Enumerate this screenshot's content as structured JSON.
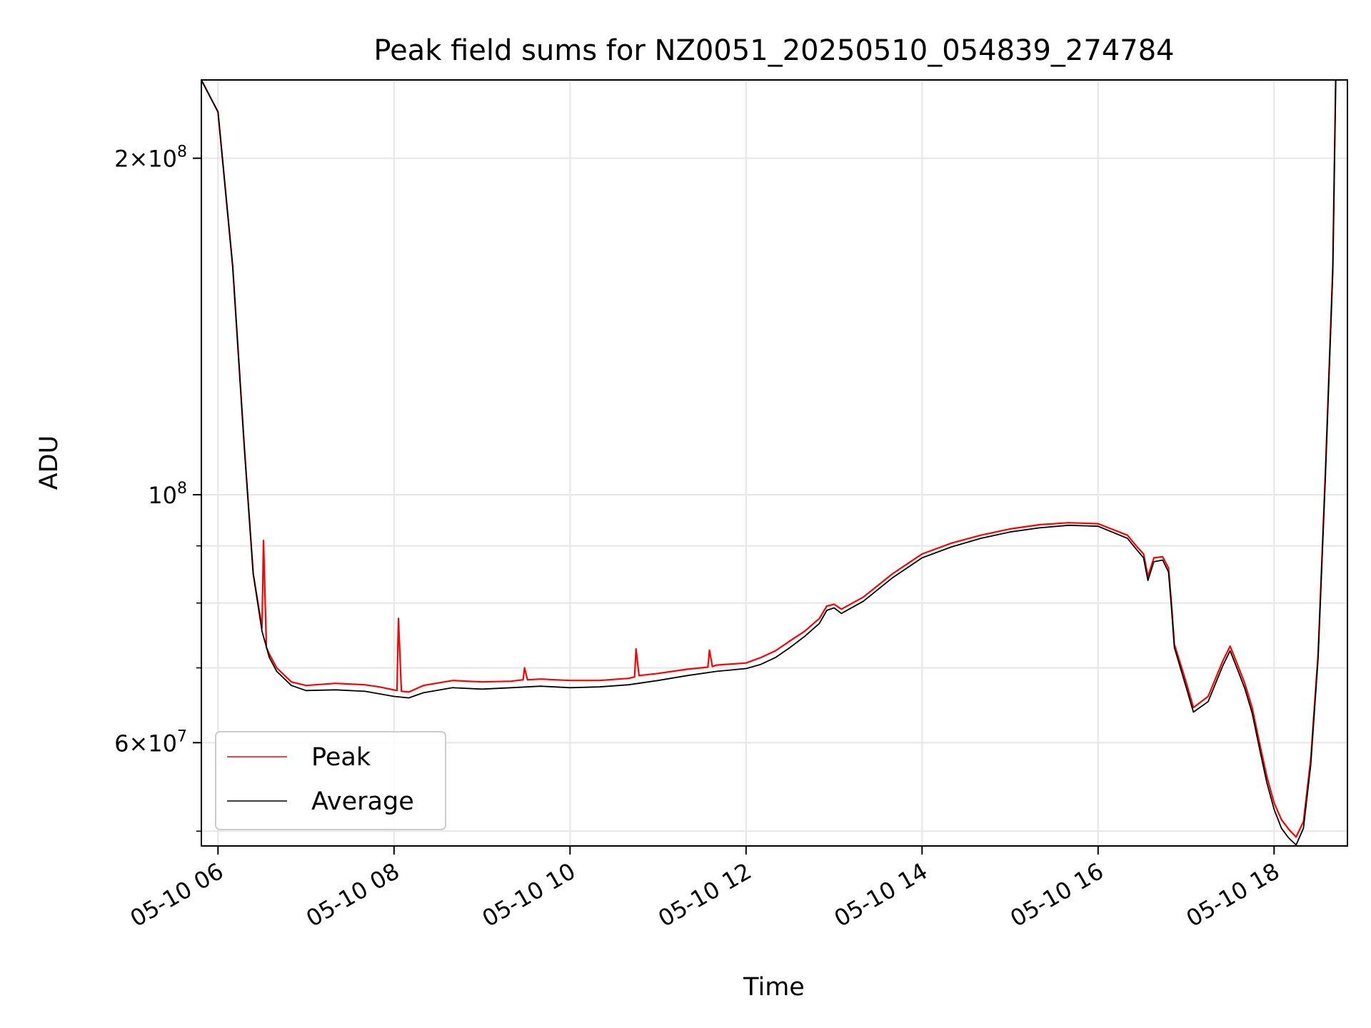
{
  "chart_data": {
    "type": "line",
    "title": "Peak field sums for NZ0051_20250510_054839_274784",
    "xlabel": "Time",
    "ylabel": "ADU",
    "x_scale": "time",
    "y_scale": "log",
    "xlim": [
      "2025-05-10T05:48:39",
      "2025-05-10T18:50:00"
    ],
    "ylim": [
      48500000,
      235000000
    ],
    "grid": true,
    "legend_position": "lower-left",
    "x_ticks": [
      {
        "t": "2025-05-10T06:00:00",
        "label": "05-10 06"
      },
      {
        "t": "2025-05-10T08:00:00",
        "label": "05-10 08"
      },
      {
        "t": "2025-05-10T10:00:00",
        "label": "05-10 10"
      },
      {
        "t": "2025-05-10T12:00:00",
        "label": "05-10 12"
      },
      {
        "t": "2025-05-10T14:00:00",
        "label": "05-10 14"
      },
      {
        "t": "2025-05-10T16:00:00",
        "label": "05-10 16"
      },
      {
        "t": "2025-05-10T18:00:00",
        "label": "05-10 18"
      }
    ],
    "y_ticks_major": [
      {
        "v": 60000000,
        "base": "6",
        "exp": "7"
      },
      {
        "v": 100000000,
        "base": "",
        "exp": "8"
      },
      {
        "v": 200000000,
        "base": "2",
        "exp": "8"
      }
    ],
    "y_ticks_minor": [
      50000000,
      70000000,
      80000000,
      90000000
    ],
    "series": [
      {
        "name": "Peak",
        "color": "#ff0000",
        "x": [
          "2025-05-10T05:48:39",
          "2025-05-10T06:00:00",
          "2025-05-10T06:10:00",
          "2025-05-10T06:18:00",
          "2025-05-10T06:24:00",
          "2025-05-10T06:30:00",
          "2025-05-10T06:31:00",
          "2025-05-10T06:33:00",
          "2025-05-10T06:35:00",
          "2025-05-10T06:40:00",
          "2025-05-10T06:50:00",
          "2025-05-10T07:00:00",
          "2025-05-10T07:20:00",
          "2025-05-10T07:40:00",
          "2025-05-10T07:50:00",
          "2025-05-10T08:02:00",
          "2025-05-10T08:03:00",
          "2025-05-10T08:05:00",
          "2025-05-10T08:10:00",
          "2025-05-10T08:20:00",
          "2025-05-10T08:40:00",
          "2025-05-10T09:00:00",
          "2025-05-10T09:20:00",
          "2025-05-10T09:28:00",
          "2025-05-10T09:29:00",
          "2025-05-10T09:31:00",
          "2025-05-10T09:40:00",
          "2025-05-10T10:00:00",
          "2025-05-10T10:20:00",
          "2025-05-10T10:40:00",
          "2025-05-10T10:44:00",
          "2025-05-10T10:45:00",
          "2025-05-10T10:47:00",
          "2025-05-10T11:00:00",
          "2025-05-10T11:20:00",
          "2025-05-10T11:34:00",
          "2025-05-10T11:35:00",
          "2025-05-10T11:37:00",
          "2025-05-10T11:40:00",
          "2025-05-10T12:00:00",
          "2025-05-10T12:10:00",
          "2025-05-10T12:20:00",
          "2025-05-10T12:30:00",
          "2025-05-10T12:40:00",
          "2025-05-10T12:50:00",
          "2025-05-10T12:55:00",
          "2025-05-10T13:00:00",
          "2025-05-10T13:05:00",
          "2025-05-10T13:20:00",
          "2025-05-10T13:40:00",
          "2025-05-10T14:00:00",
          "2025-05-10T14:20:00",
          "2025-05-10T14:40:00",
          "2025-05-10T15:00:00",
          "2025-05-10T15:20:00",
          "2025-05-10T15:40:00",
          "2025-05-10T16:00:00",
          "2025-05-10T16:20:00",
          "2025-05-10T16:26:00",
          "2025-05-10T16:31:00",
          "2025-05-10T16:34:00",
          "2025-05-10T16:38:00",
          "2025-05-10T16:44:00",
          "2025-05-10T16:48:00",
          "2025-05-10T16:50:00",
          "2025-05-10T16:52:00",
          "2025-05-10T17:00:00",
          "2025-05-10T17:05:00",
          "2025-05-10T17:15:00",
          "2025-05-10T17:25:00",
          "2025-05-10T17:30:00",
          "2025-05-10T17:35:00",
          "2025-05-10T17:40:00",
          "2025-05-10T17:45:00",
          "2025-05-10T17:50:00",
          "2025-05-10T17:55:00",
          "2025-05-10T18:00:00",
          "2025-05-10T18:05:00",
          "2025-05-10T18:10:00",
          "2025-05-10T18:15:00",
          "2025-05-10T18:20:00",
          "2025-05-10T18:25:00",
          "2025-05-10T18:30:00",
          "2025-05-10T18:35:00",
          "2025-05-10T18:40:00",
          "2025-05-10T18:42:00"
        ],
        "y": [
          235000000,
          220000000,
          160000000,
          110000000,
          85000000,
          76000000,
          91000000,
          73000000,
          72000000,
          70000000,
          68000000,
          67500000,
          67800000,
          67600000,
          67300000,
          66800000,
          77500000,
          66700000,
          66600000,
          67500000,
          68200000,
          68000000,
          68100000,
          68300000,
          70000000,
          68300000,
          68400000,
          68200000,
          68200000,
          68500000,
          68700000,
          72800000,
          68900000,
          69200000,
          69800000,
          70100000,
          72600000,
          70200000,
          70400000,
          70700000,
          71500000,
          72500000,
          74000000,
          75500000,
          77500000,
          79500000,
          79800000,
          79000000,
          81000000,
          85000000,
          88500000,
          90500000,
          92000000,
          93200000,
          94000000,
          94400000,
          94200000,
          92000000,
          90000000,
          88500000,
          84500000,
          87800000,
          88000000,
          86000000,
          80000000,
          73500000,
          68000000,
          64500000,
          66000000,
          71000000,
          73200000,
          70500000,
          67800000,
          64500000,
          60000000,
          56000000,
          53000000,
          51200000,
          50200000,
          49400000,
          51000000,
          58000000,
          72000000,
          105000000,
          160000000,
          235000000
        ]
      },
      {
        "name": "Average",
        "color": "#000000",
        "x": [
          "2025-05-10T05:48:39",
          "2025-05-10T06:00:00",
          "2025-05-10T06:10:00",
          "2025-05-10T06:18:00",
          "2025-05-10T06:24:00",
          "2025-05-10T06:30:00",
          "2025-05-10T06:35:00",
          "2025-05-10T06:40:00",
          "2025-05-10T06:50:00",
          "2025-05-10T07:00:00",
          "2025-05-10T07:20:00",
          "2025-05-10T07:40:00",
          "2025-05-10T08:00:00",
          "2025-05-10T08:10:00",
          "2025-05-10T08:20:00",
          "2025-05-10T08:40:00",
          "2025-05-10T09:00:00",
          "2025-05-10T09:20:00",
          "2025-05-10T09:40:00",
          "2025-05-10T10:00:00",
          "2025-05-10T10:20:00",
          "2025-05-10T10:40:00",
          "2025-05-10T11:00:00",
          "2025-05-10T11:20:00",
          "2025-05-10T11:40:00",
          "2025-05-10T12:00:00",
          "2025-05-10T12:10:00",
          "2025-05-10T12:20:00",
          "2025-05-10T12:30:00",
          "2025-05-10T12:40:00",
          "2025-05-10T12:50:00",
          "2025-05-10T12:55:00",
          "2025-05-10T13:00:00",
          "2025-05-10T13:05:00",
          "2025-05-10T13:20:00",
          "2025-05-10T13:40:00",
          "2025-05-10T14:00:00",
          "2025-05-10T14:20:00",
          "2025-05-10T14:40:00",
          "2025-05-10T15:00:00",
          "2025-05-10T15:20:00",
          "2025-05-10T15:40:00",
          "2025-05-10T16:00:00",
          "2025-05-10T16:20:00",
          "2025-05-10T16:26:00",
          "2025-05-10T16:31:00",
          "2025-05-10T16:34:00",
          "2025-05-10T16:38:00",
          "2025-05-10T16:44:00",
          "2025-05-10T16:48:00",
          "2025-05-10T16:50:00",
          "2025-05-10T16:52:00",
          "2025-05-10T17:00:00",
          "2025-05-10T17:05:00",
          "2025-05-10T17:15:00",
          "2025-05-10T17:25:00",
          "2025-05-10T17:30:00",
          "2025-05-10T17:35:00",
          "2025-05-10T17:40:00",
          "2025-05-10T17:45:00",
          "2025-05-10T17:50:00",
          "2025-05-10T17:55:00",
          "2025-05-10T18:00:00",
          "2025-05-10T18:05:00",
          "2025-05-10T18:10:00",
          "2025-05-10T18:15:00",
          "2025-05-10T18:20:00",
          "2025-05-10T18:25:00",
          "2025-05-10T18:30:00",
          "2025-05-10T18:35:00",
          "2025-05-10T18:40:00",
          "2025-05-10T18:42:00"
        ],
        "y": [
          235000000,
          220000000,
          160000000,
          110000000,
          85000000,
          75500000,
          71500000,
          69500000,
          67500000,
          66800000,
          66900000,
          66700000,
          66000000,
          65800000,
          66500000,
          67200000,
          67000000,
          67200000,
          67400000,
          67200000,
          67300000,
          67600000,
          68200000,
          68900000,
          69500000,
          69900000,
          70500000,
          71500000,
          73000000,
          74700000,
          76700000,
          78800000,
          79200000,
          78300000,
          80300000,
          84300000,
          87800000,
          89800000,
          91400000,
          92600000,
          93400000,
          93900000,
          93700000,
          91400000,
          89400000,
          87800000,
          83800000,
          87100000,
          87400000,
          85300000,
          79300000,
          73000000,
          67300000,
          63900000,
          65300000,
          70300000,
          72500000,
          69800000,
          67100000,
          63800000,
          59300000,
          55300000,
          52300000,
          50300000,
          49300000,
          48600000,
          50300000,
          57300000,
          71300000,
          104000000,
          158000000,
          235000000
        ]
      }
    ]
  }
}
